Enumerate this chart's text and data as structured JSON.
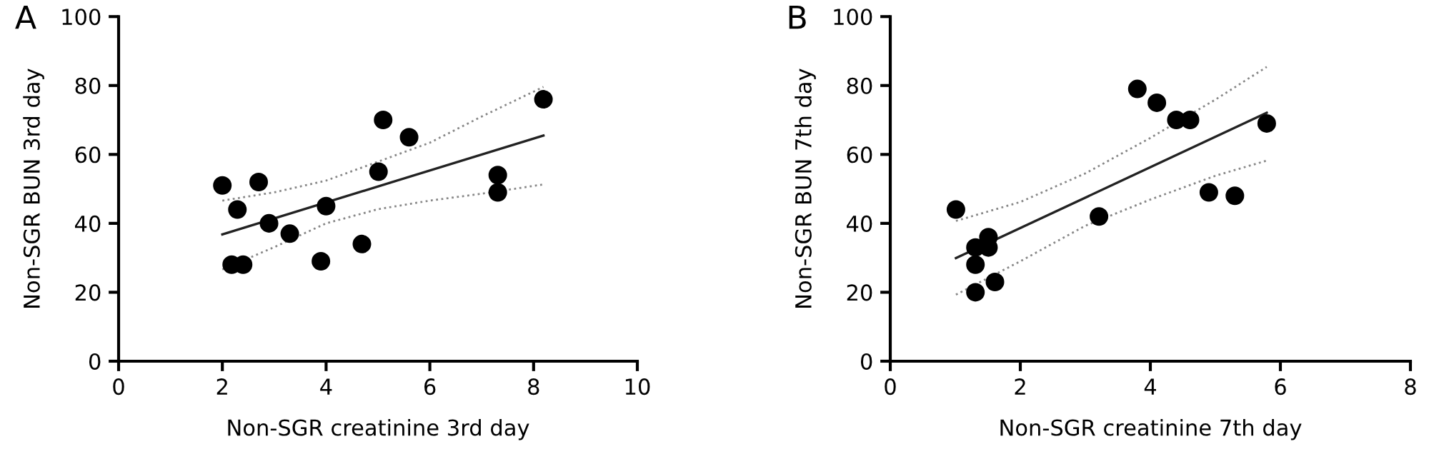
{
  "chart_data": [
    {
      "type": "scatter",
      "title": "A",
      "xlabel": "Non-SGR creatinine 3rd day",
      "ylabel": "Non-SGR BUN 3rd day",
      "xlim": [
        0,
        10
      ],
      "ylim": [
        0,
        100
      ],
      "xticks": [
        0,
        2,
        4,
        6,
        8,
        10
      ],
      "yticks": [
        0,
        20,
        40,
        60,
        80,
        100
      ],
      "grid": false,
      "legend": false,
      "series": [
        {
          "marker": "circle",
          "color": "#000000",
          "x": [
            2.0,
            2.29,
            2.18,
            2.4,
            2.7,
            2.9,
            3.3,
            3.9,
            4.0,
            4.69,
            5.01,
            5.1,
            5.6,
            7.31,
            7.31,
            8.19
          ],
          "values": [
            51,
            44,
            28,
            28,
            52,
            40,
            37,
            29,
            45,
            34,
            55,
            70,
            65,
            54,
            49,
            76
          ]
        },
        {
          "type": "line",
          "line_style": "solid",
          "marker": "none",
          "color": "#222222",
          "x": [
            2.0,
            8.19
          ],
          "values": [
            36.8,
            65.5
          ]
        },
        {
          "type": "line",
          "line_style": "dotted",
          "marker": "none",
          "color": "#888888",
          "x": [
            2.0,
            3,
            4,
            5,
            6,
            7,
            8.19
          ],
          "values": [
            46.6,
            49,
            52.4,
            57.9,
            63.4,
            71,
            79.6
          ]
        },
        {
          "type": "line",
          "line_style": "dotted",
          "marker": "none",
          "color": "#888888",
          "x": [
            2.0,
            3,
            4,
            5,
            6,
            7,
            8.19
          ],
          "values": [
            26.6,
            33.1,
            40,
            44.1,
            46.6,
            48.6,
            51.3
          ]
        }
      ]
    },
    {
      "type": "scatter",
      "title": "B",
      "xlabel": "Non-SGR creatinine 7th day",
      "ylabel": "Non-SGR BUN 7th day",
      "xlim": [
        0,
        8
      ],
      "ylim": [
        0,
        100
      ],
      "xticks": [
        0,
        2,
        4,
        6,
        8
      ],
      "yticks": [
        0,
        20,
        40,
        60,
        80,
        100
      ],
      "grid": false,
      "legend": false,
      "series": [
        {
          "marker": "circle",
          "color": "#000000",
          "x": [
            1.01,
            1.31,
            1.31,
            1.31,
            1.51,
            1.51,
            1.61,
            3.21,
            3.8,
            4.1,
            4.4,
            4.61,
            4.9,
            5.3,
            5.79
          ],
          "values": [
            44,
            33,
            28,
            20,
            36,
            33,
            23,
            42,
            79,
            75,
            70,
            70,
            49,
            48,
            69
          ]
        },
        {
          "type": "line",
          "line_style": "solid",
          "marker": "none",
          "color": "#222222",
          "x": [
            1.01,
            5.79
          ],
          "values": [
            29.9,
            72.1
          ]
        },
        {
          "type": "line",
          "line_style": "dotted",
          "marker": "none",
          "color": "#888888",
          "x": [
            1.01,
            2,
            3,
            4,
            5,
            5.79
          ],
          "values": [
            40.7,
            46.2,
            54.5,
            64.8,
            75.9,
            85.4
          ]
        },
        {
          "type": "line",
          "line_style": "dotted",
          "marker": "none",
          "color": "#888888",
          "x": [
            1.01,
            2,
            3,
            4,
            5,
            5.79
          ],
          "values": [
            19.3,
            29,
            39.3,
            46.9,
            53.8,
            58.2
          ]
        }
      ]
    }
  ]
}
